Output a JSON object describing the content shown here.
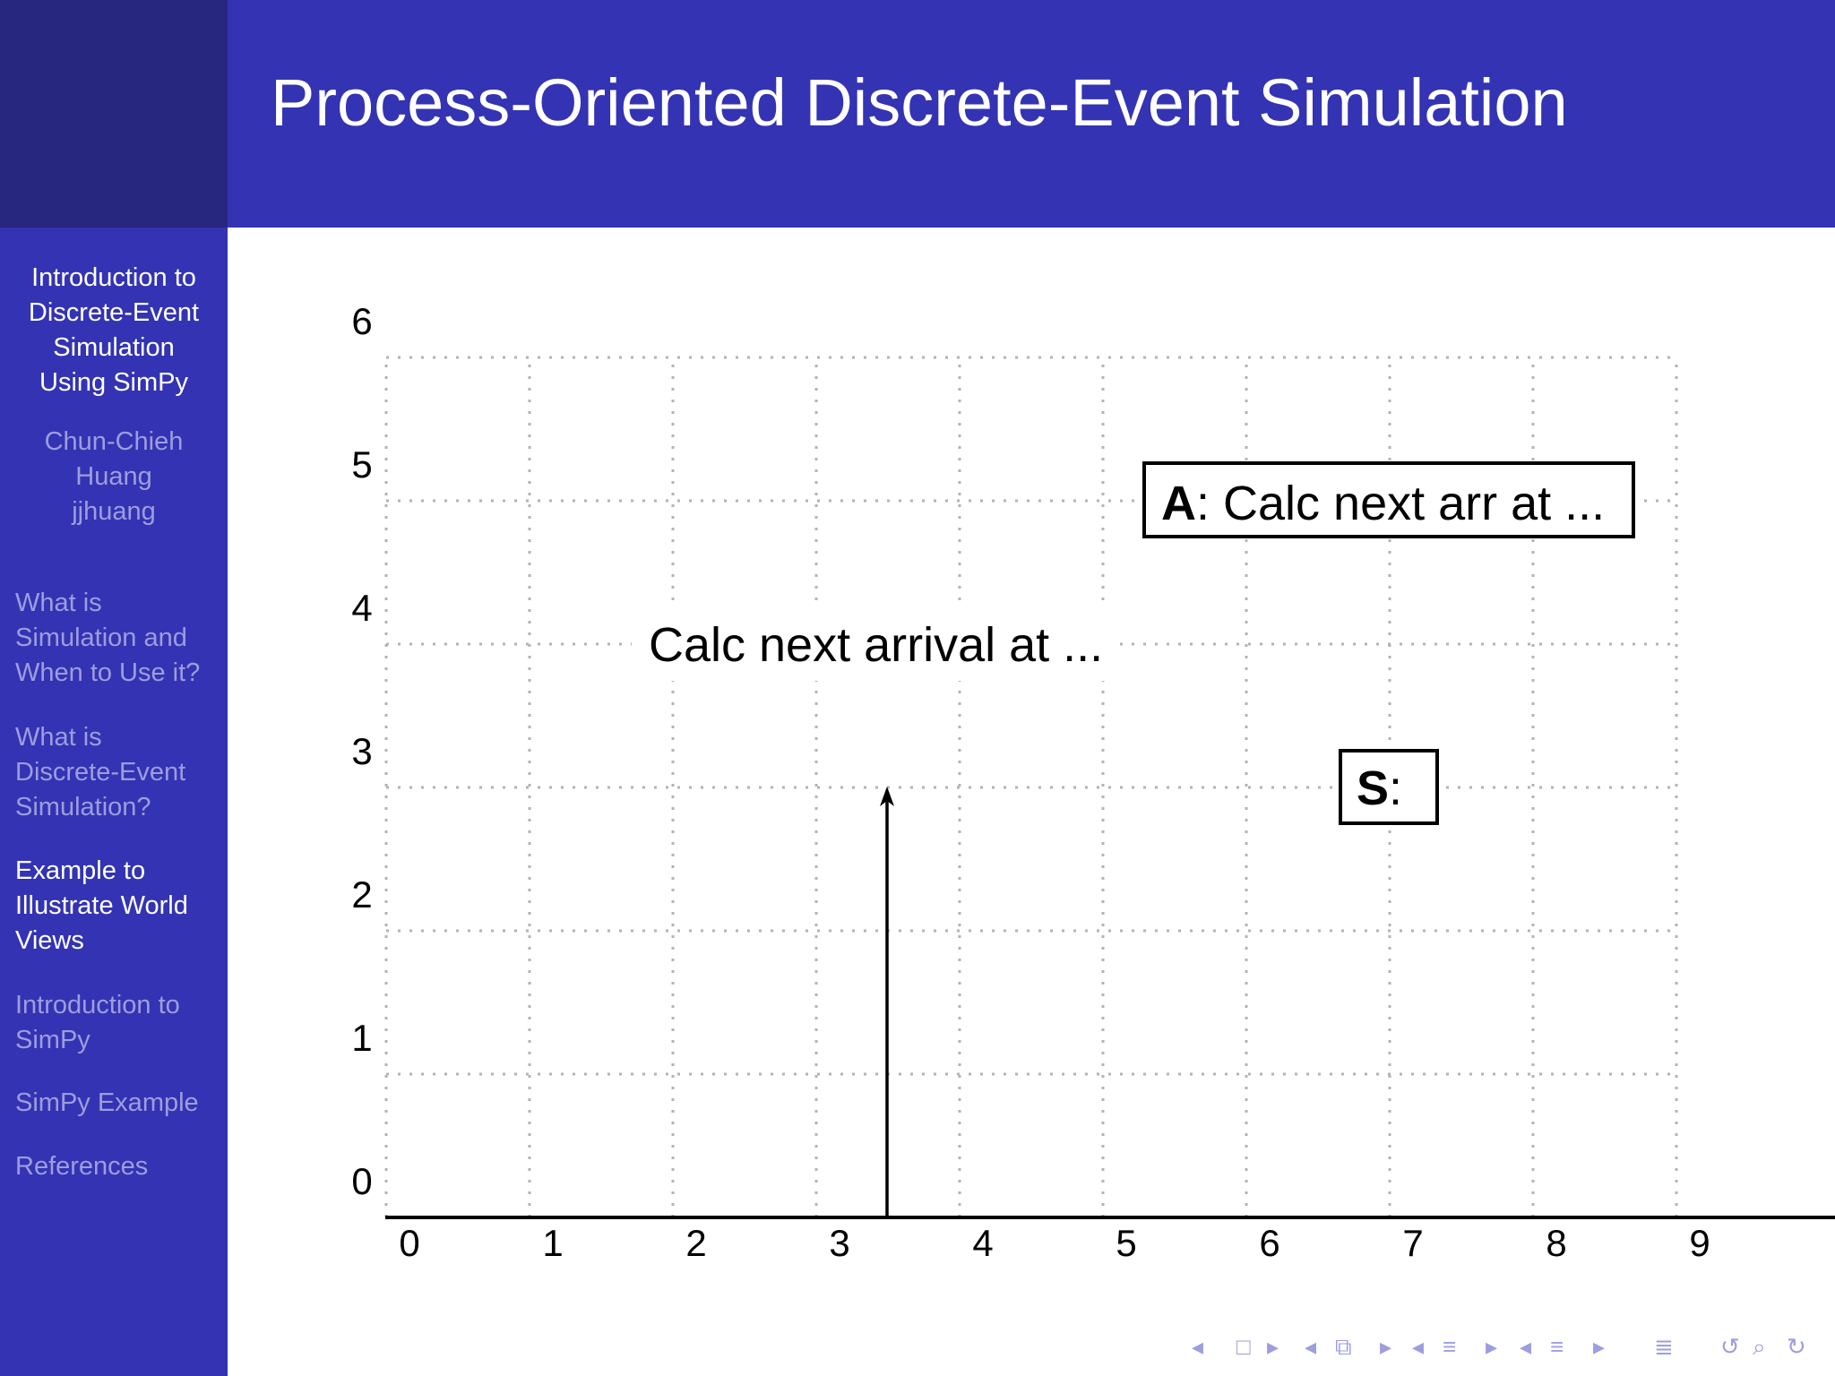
{
  "header": {
    "title": "Process-Oriented Discrete-Event Simulation"
  },
  "sidebar": {
    "title_lines": [
      "Introduction to",
      "Discrete-Event",
      "Simulation",
      "Using SimPy"
    ],
    "author_lines": [
      "Chun-Chieh",
      "Huang",
      "jjhuang"
    ],
    "sections": [
      {
        "lines": [
          "What is",
          "Simulation and",
          "When to Use it?"
        ],
        "active": false
      },
      {
        "lines": [
          "What is",
          "Discrete-Event",
          "Simulation?"
        ],
        "active": false
      },
      {
        "lines": [
          "Example to",
          "Illustrate World",
          "Views"
        ],
        "active": true
      },
      {
        "lines": [
          "Introduction to",
          "SimPy"
        ],
        "active": false
      },
      {
        "lines": [
          "SimPy Example"
        ],
        "active": false
      },
      {
        "lines": [
          "References"
        ],
        "active": false
      }
    ]
  },
  "diagram": {
    "x_ticks": [
      "0",
      "1",
      "2",
      "3",
      "4",
      "5",
      "6",
      "7",
      "8",
      "9"
    ],
    "y_ticks": [
      "0",
      "1",
      "2",
      "3",
      "4",
      "5",
      "6"
    ],
    "arrow_label": "Calc next arrival at ...",
    "box_a": {
      "bold": "A",
      "rest": ": Calc next arr at ..."
    },
    "box_s": {
      "bold": "S",
      "rest": ":"
    }
  },
  "nav_icons": [
    "nav-prev-icon",
    "nav-frame-icon",
    "nav-next-icon",
    "nav-prev-icon",
    "nav-subsection-icon",
    "nav-next-icon",
    "nav-prev-icon",
    "nav-section-icon",
    "nav-next-icon",
    "nav-prev-icon",
    "nav-list-icon",
    "nav-next-icon",
    "nav-toc-icon",
    "nav-undo-icon",
    "nav-search-icon",
    "nav-redo-icon"
  ]
}
